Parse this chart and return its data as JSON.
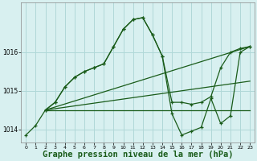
{
  "background_color": "#d8f0f0",
  "grid_color": "#b0d8d8",
  "line_color": "#1a5c1a",
  "xlabel": "Graphe pression niveau de la mer (hPa)",
  "xlabel_fontsize": 7.5,
  "xlim": [
    -0.5,
    23.5
  ],
  "ylim": [
    1013.65,
    1017.3
  ],
  "yticks": [
    1014,
    1015,
    1016
  ],
  "ytick_labels": [
    "1014",
    "1015",
    "1016"
  ],
  "xticks": [
    0,
    1,
    2,
    3,
    4,
    5,
    6,
    7,
    8,
    9,
    10,
    11,
    12,
    13,
    14,
    15,
    16,
    17,
    18,
    19,
    20,
    21,
    22,
    23
  ],
  "lines": [
    {
      "x": [
        0,
        1,
        2,
        3,
        4,
        5,
        6,
        7,
        8,
        9,
        10,
        11,
        12,
        13,
        14,
        15,
        16,
        17,
        18,
        19,
        20,
        21,
        22,
        23
      ],
      "y": [
        1013.85,
        1014.1,
        1014.5,
        1014.7,
        1015.1,
        1015.35,
        1015.5,
        1015.6,
        1015.7,
        1016.15,
        1016.6,
        1016.85,
        1016.9,
        1016.45,
        1015.9,
        1014.7,
        1014.7,
        1014.65,
        1014.7,
        1014.85,
        1015.6,
        1016.0,
        1016.1,
        1016.15
      ],
      "marker": true
    },
    {
      "x": [
        2,
        3,
        4,
        5,
        6,
        7,
        8,
        9,
        10,
        11,
        12,
        13,
        14,
        15,
        16,
        17,
        18,
        19,
        20,
        21,
        22,
        23
      ],
      "y": [
        1014.5,
        1014.7,
        1015.1,
        1015.35,
        1015.5,
        1015.6,
        1015.7,
        1016.15,
        1016.6,
        1016.85,
        1016.9,
        1016.45,
        1015.9,
        1014.4,
        1013.85,
        1013.95,
        1014.05,
        1014.8,
        1014.15,
        1014.35,
        1016.0,
        1016.15
      ],
      "marker": true
    },
    {
      "x": [
        2,
        23
      ],
      "y": [
        1014.5,
        1016.15
      ],
      "marker": false
    },
    {
      "x": [
        2,
        23
      ],
      "y": [
        1014.5,
        1015.25
      ],
      "marker": false
    },
    {
      "x": [
        2,
        23
      ],
      "y": [
        1014.5,
        1014.5
      ],
      "marker": false
    }
  ]
}
